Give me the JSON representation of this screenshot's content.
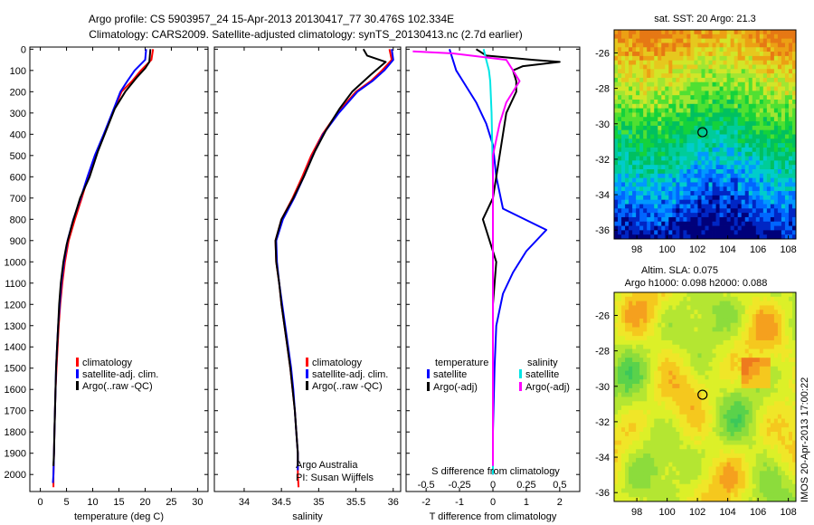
{
  "title_line1": "Argo profile: CS 5903957_24 15-Apr-2013 20130417_77 30.476S 102.334E",
  "title_line2": "Climatology: CARS2009. Satellite-adjusted climatology: synTS_20130413.nc (2.7d earlier)",
  "side_text": "IMOS 20-Apr-2013 17:00:22",
  "colors": {
    "climatology": "#ff0000",
    "satellite": "#0000ff",
    "argo": "#000000",
    "sat_salinity": "#00e5e5",
    "argo_salinity": "#ff00ff"
  },
  "depth_ticks": [
    0,
    100,
    200,
    300,
    400,
    500,
    600,
    700,
    800,
    900,
    1000,
    1100,
    1200,
    1300,
    1400,
    1500,
    1600,
    1700,
    1800,
    1900,
    2000
  ],
  "chart_data": [
    {
      "type": "line",
      "xlabel": "temperature (deg C)",
      "xlim": [
        -2,
        32
      ],
      "ylim": [
        2080,
        -10
      ],
      "xticks": [
        0,
        5,
        10,
        15,
        20,
        25,
        30
      ],
      "legend": [
        "climatology",
        "satellite-adj. clim.",
        "Argo(..raw -QC)"
      ],
      "legend_position": "lower-middle",
      "series": [
        {
          "name": "climatology",
          "color": "#ff0000",
          "points": [
            [
              21.5,
              0
            ],
            [
              21.2,
              50
            ],
            [
              19.2,
              100
            ],
            [
              17.5,
              150
            ],
            [
              15.5,
              200
            ],
            [
              13.8,
              300
            ],
            [
              12.2,
              400
            ],
            [
              10.6,
              500
            ],
            [
              9.1,
              600
            ],
            [
              7.9,
              700
            ],
            [
              6.6,
              800
            ],
            [
              5.4,
              900
            ],
            [
              4.7,
              1000
            ],
            [
              4.2,
              1100
            ],
            [
              3.8,
              1200
            ],
            [
              3.5,
              1300
            ],
            [
              3.3,
              1400
            ],
            [
              3.1,
              1500
            ],
            [
              2.9,
              1600
            ],
            [
              2.8,
              1700
            ],
            [
              2.7,
              1800
            ],
            [
              2.6,
              1900
            ],
            [
              2.5,
              2000
            ],
            [
              2.5,
              2060
            ]
          ]
        },
        {
          "name": "satellite-adj. clim.",
          "color": "#0000ff",
          "points": [
            [
              20.2,
              0
            ],
            [
              20.0,
              50
            ],
            [
              18.0,
              100
            ],
            [
              16.6,
              150
            ],
            [
              15.3,
              200
            ],
            [
              13.7,
              300
            ],
            [
              12.1,
              400
            ],
            [
              10.4,
              500
            ],
            [
              9.0,
              600
            ],
            [
              7.7,
              700
            ],
            [
              6.3,
              800
            ],
            [
              5.2,
              900
            ],
            [
              4.5,
              1000
            ],
            [
              4.0,
              1100
            ],
            [
              3.7,
              1200
            ],
            [
              3.4,
              1300
            ],
            [
              3.2,
              1400
            ],
            [
              3.0,
              1500
            ],
            [
              2.9,
              1600
            ],
            [
              2.8,
              1700
            ],
            [
              2.7,
              1800
            ],
            [
              2.6,
              1900
            ],
            [
              2.5,
              2000
            ],
            [
              2.4,
              2040
            ]
          ]
        },
        {
          "name": "Argo(..raw -QC)",
          "color": "#000000",
          "points": [
            [
              21.0,
              0
            ],
            [
              20.8,
              60
            ],
            [
              20.0,
              90
            ],
            [
              18.5,
              130
            ],
            [
              16.2,
              200
            ],
            [
              14.2,
              280
            ],
            [
              12.6,
              380
            ],
            [
              11.0,
              480
            ],
            [
              9.4,
              600
            ],
            [
              7.6,
              700
            ],
            [
              6.1,
              820
            ],
            [
              5.0,
              920
            ],
            [
              4.4,
              1000
            ],
            [
              3.9,
              1100
            ],
            [
              3.6,
              1200
            ],
            [
              3.4,
              1300
            ],
            [
              3.2,
              1400
            ],
            [
              3.0,
              1500
            ],
            [
              2.9,
              1600
            ],
            [
              2.8,
              1700
            ],
            [
              2.7,
              1800
            ],
            [
              2.6,
              1900
            ],
            [
              2.5,
              1960
            ]
          ]
        }
      ]
    },
    {
      "type": "line",
      "xlabel": "salinity",
      "xlim": [
        33.6,
        36.1
      ],
      "ylim": [
        2080,
        -10
      ],
      "xticks": [
        34,
        34.5,
        35,
        35.5,
        36
      ],
      "xtick_labels": [
        "34",
        "34.5",
        "35",
        "35.5",
        "36"
      ],
      "legend": [
        "climatology",
        "satellite-adj. clim.",
        "Argo(..raw -QC)"
      ],
      "legend_position": "lower-right",
      "annotation": [
        "Argo Australia",
        "PI: Susan Wijffels"
      ],
      "series": [
        {
          "name": "climatology",
          "color": "#ff0000",
          "points": [
            [
              35.95,
              0
            ],
            [
              35.98,
              50
            ],
            [
              35.85,
              100
            ],
            [
              35.7,
              150
            ],
            [
              35.5,
              200
            ],
            [
              35.25,
              300
            ],
            [
              35.05,
              400
            ],
            [
              34.9,
              500
            ],
            [
              34.78,
              600
            ],
            [
              34.65,
              700
            ],
            [
              34.5,
              800
            ],
            [
              34.42,
              900
            ],
            [
              34.43,
              1000
            ],
            [
              34.47,
              1100
            ],
            [
              34.5,
              1200
            ],
            [
              34.54,
              1300
            ],
            [
              34.58,
              1400
            ],
            [
              34.62,
              1500
            ],
            [
              34.65,
              1600
            ],
            [
              34.68,
              1700
            ],
            [
              34.7,
              1800
            ],
            [
              34.72,
              1900
            ],
            [
              34.72,
              2000
            ],
            [
              34.73,
              2060
            ]
          ]
        },
        {
          "name": "satellite-adj. clim.",
          "color": "#0000ff",
          "points": [
            [
              35.98,
              0
            ],
            [
              36.0,
              50
            ],
            [
              35.88,
              100
            ],
            [
              35.72,
              150
            ],
            [
              35.52,
              200
            ],
            [
              35.27,
              300
            ],
            [
              35.06,
              400
            ],
            [
              34.92,
              500
            ],
            [
              34.8,
              600
            ],
            [
              34.67,
              700
            ],
            [
              34.52,
              800
            ],
            [
              34.43,
              900
            ],
            [
              34.44,
              1000
            ],
            [
              34.47,
              1100
            ],
            [
              34.51,
              1200
            ],
            [
              34.55,
              1300
            ],
            [
              34.59,
              1400
            ],
            [
              34.63,
              1500
            ],
            [
              34.66,
              1600
            ],
            [
              34.68,
              1700
            ],
            [
              34.7,
              1800
            ],
            [
              34.72,
              1900
            ],
            [
              34.72,
              1980
            ]
          ]
        },
        {
          "name": "Argo(..raw -QC)",
          "color": "#000000",
          "points": [
            [
              35.6,
              0
            ],
            [
              35.65,
              30
            ],
            [
              35.9,
              60
            ],
            [
              35.7,
              120
            ],
            [
              35.45,
              200
            ],
            [
              35.28,
              280
            ],
            [
              35.1,
              380
            ],
            [
              34.95,
              480
            ],
            [
              34.8,
              600
            ],
            [
              34.66,
              700
            ],
            [
              34.5,
              800
            ],
            [
              34.42,
              900
            ],
            [
              34.43,
              1000
            ],
            [
              34.47,
              1100
            ],
            [
              34.5,
              1200
            ],
            [
              34.54,
              1300
            ],
            [
              34.58,
              1400
            ],
            [
              34.62,
              1500
            ],
            [
              34.65,
              1600
            ],
            [
              34.68,
              1700
            ],
            [
              34.7,
              1800
            ],
            [
              34.72,
              1900
            ],
            [
              34.72,
              1960
            ]
          ]
        }
      ]
    },
    {
      "type": "line",
      "xlabel": "T difference from climatology",
      "xlabel_top": "S difference from climatology",
      "xlim": [
        -2.6,
        2.6
      ],
      "ylim": [
        2080,
        -10
      ],
      "xticks": [
        -2,
        -1,
        0,
        1,
        2
      ],
      "xticks_top": [
        -0.5,
        -0.25,
        0,
        0.25,
        0.5
      ],
      "xtick_top_labels": [
        "-0.5",
        "-0.25",
        "0",
        "0.25",
        "0.5"
      ],
      "s_scale": 0.2,
      "legend": [
        "temperature",
        "satellite",
        "Argo(-adj)",
        "salinity",
        "satellite",
        "Argo(-adj)"
      ],
      "legend_position": "lower-middle",
      "series": [
        {
          "name": "temperature satellite",
          "color": "#0000ff",
          "points": [
            [
              -1.3,
              0
            ],
            [
              -1.2,
              50
            ],
            [
              -1.1,
              100
            ],
            [
              -0.9,
              150
            ],
            [
              -0.5,
              250
            ],
            [
              -0.2,
              350
            ],
            [
              0,
              450
            ],
            [
              0.1,
              600
            ],
            [
              0.3,
              750
            ],
            [
              1.6,
              850
            ],
            [
              1.0,
              950
            ],
            [
              0.6,
              1050
            ],
            [
              0.3,
              1150
            ],
            [
              0.1,
              1300
            ],
            [
              0.05,
              1500
            ],
            [
              0,
              1800
            ],
            [
              0,
              2000
            ]
          ]
        },
        {
          "name": "temperature Argo(-adj)",
          "color": "#000000",
          "points": [
            [
              -0.5,
              0
            ],
            [
              -0.2,
              30
            ],
            [
              1.2,
              50
            ],
            [
              2.0,
              60
            ],
            [
              0.9,
              80
            ],
            [
              0.6,
              100
            ],
            [
              0.7,
              150
            ],
            [
              0.7,
              200
            ],
            [
              0.4,
              300
            ],
            [
              0.3,
              400
            ],
            [
              0.2,
              500
            ],
            [
              0,
              700
            ],
            [
              -0.3,
              800
            ],
            [
              -0.1,
              900
            ],
            [
              0.1,
              1000
            ],
            [
              0,
              1200
            ],
            [
              0,
              1500
            ],
            [
              0,
              1800
            ],
            [
              0,
              1960
            ]
          ]
        },
        {
          "name": "salinity satellite",
          "color": "#00e5e5",
          "points": [
            [
              -0.07,
              0
            ],
            [
              -0.05,
              50
            ],
            [
              -0.03,
              100
            ],
            [
              -0.02,
              150
            ],
            [
              -0.01,
              300
            ],
            [
              0,
              600
            ],
            [
              0,
              1000
            ],
            [
              0,
              1500
            ],
            [
              0,
              2000
            ]
          ]
        },
        {
          "name": "salinity Argo(-adj)",
          "color": "#ff00ff",
          "points": [
            [
              -0.6,
              10
            ],
            [
              -0.3,
              20
            ],
            [
              0.1,
              50
            ],
            [
              0.15,
              100
            ],
            [
              0.2,
              150
            ],
            [
              0.1,
              250
            ],
            [
              0.05,
              350
            ],
            [
              0,
              500
            ],
            [
              0,
              800
            ],
            [
              0,
              1200
            ],
            [
              0,
              1600
            ],
            [
              0,
              1960
            ]
          ]
        }
      ]
    },
    {
      "type": "heatmap",
      "title": "sat. SST: 20 Argo: 21.3",
      "xticks": [
        98,
        100,
        102,
        104,
        106,
        108
      ],
      "yticks": [
        -26,
        -28,
        -30,
        -32,
        -34,
        -36
      ],
      "xlim": [
        96.5,
        108.5
      ],
      "ylim": [
        -36.5,
        -24.7
      ],
      "marker": [
        102.334,
        -30.476
      ]
    },
    {
      "type": "heatmap",
      "title": "Altim. SLA: 0.075",
      "subtitle": "Argo h1000: 0.098 h2000: 0.088",
      "xticks": [
        98,
        100,
        102,
        104,
        106,
        108
      ],
      "yticks": [
        -26,
        -28,
        -30,
        -32,
        -34,
        -36
      ],
      "xlim": [
        96.5,
        108.5
      ],
      "ylim": [
        -36.5,
        -24.7
      ],
      "marker": [
        102.334,
        -30.476
      ]
    }
  ]
}
